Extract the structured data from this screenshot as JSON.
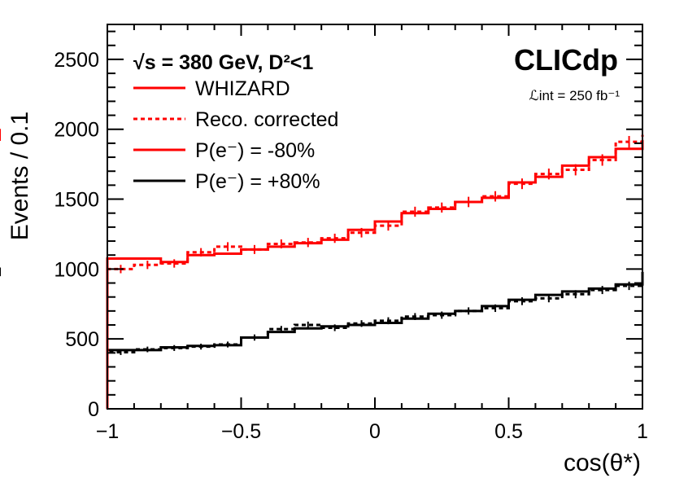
{
  "chart_data": {
    "type": "histogram",
    "xlabel": "cos(θ*)",
    "ylabel": "Events / 0.1",
    "xlim": [
      -1,
      1
    ],
    "ylim": [
      0,
      2750
    ],
    "x_ticks": [
      "−1",
      "−0.5",
      "0",
      "0.5",
      "1"
    ],
    "x_tick_values": [
      -1,
      -0.5,
      0,
      0.5,
      1
    ],
    "y_ticks": [
      "0",
      "500",
      "1000",
      "1500",
      "2000",
      "2500"
    ],
    "y_tick_values": [
      0,
      500,
      1000,
      1500,
      2000,
      2500
    ],
    "bin_edges": [
      -1.0,
      -0.9,
      -0.8,
      -0.7,
      -0.6,
      -0.5,
      -0.4,
      -0.3,
      -0.2,
      -0.1,
      0.0,
      0.1,
      0.2,
      0.3,
      0.4,
      0.5,
      0.6,
      0.7,
      0.8,
      0.9,
      1.0
    ],
    "legend_title": "√s = 380 GeV, D²<1",
    "brand": "CLICdp",
    "luminosity_label": "ℒint = 250 fb⁻¹",
    "series": [
      {
        "name": "WHIZARD",
        "key": "red_whizard",
        "color": "#ff0000",
        "style": "solid",
        "values": [
          1075,
          1075,
          1050,
          1100,
          1110,
          1140,
          1160,
          1185,
          1210,
          1280,
          1340,
          1400,
          1430,
          1480,
          1510,
          1620,
          1660,
          1740,
          1800,
          1860,
          1920
        ]
      },
      {
        "name": "Reco. corrected",
        "key": "red_reco",
        "color": "#ff0000",
        "style": "dotted",
        "values": [
          1000,
          1030,
          1040,
          1120,
          1160,
          1140,
          1180,
          1190,
          1220,
          1260,
          1310,
          1410,
          1440,
          1480,
          1520,
          1610,
          1680,
          1710,
          1780,
          1910,
          1960
        ],
        "errors": [
          30,
          30,
          30,
          30,
          32,
          32,
          32,
          33,
          33,
          34,
          35,
          36,
          36,
          37,
          37,
          38,
          39,
          40,
          41,
          42,
          43
        ]
      },
      {
        "name": "P(e⁻) = -80%",
        "key": "red_label",
        "color": "#ff0000",
        "style": "solid"
      },
      {
        "name": "WHIZARD",
        "key": "black_whizard",
        "color": "#000000",
        "style": "solid",
        "values": [
          420,
          420,
          440,
          450,
          455,
          510,
          550,
          575,
          590,
          600,
          615,
          645,
          680,
          700,
          735,
          780,
          815,
          840,
          860,
          890,
          960
        ]
      },
      {
        "name": "Reco. corrected",
        "key": "black_reco",
        "color": "#000000",
        "style": "dotted",
        "values": [
          405,
          425,
          435,
          445,
          460,
          510,
          570,
          600,
          580,
          610,
          630,
          660,
          670,
          700,
          720,
          770,
          790,
          820,
          850,
          880,
          980
        ],
        "errors": [
          20,
          20,
          21,
          21,
          21,
          22,
          23,
          24,
          24,
          24,
          25,
          25,
          26,
          26,
          27,
          28,
          28,
          29,
          29,
          30,
          31
        ]
      },
      {
        "name": "P(e⁻) = +80%",
        "key": "black_label",
        "color": "#000000",
        "style": "solid"
      }
    ],
    "legend_entries": [
      {
        "label": "WHIZARD",
        "color": "#ff0000",
        "style": "solid"
      },
      {
        "label": "Reco. corrected",
        "color": "#ff0000",
        "style": "dotted"
      },
      {
        "label": "P(e⁻) = -80%",
        "color": "#ff0000",
        "style": "solid"
      },
      {
        "label": "P(e⁻) = +80%",
        "color": "#000000",
        "style": "solid"
      }
    ]
  }
}
